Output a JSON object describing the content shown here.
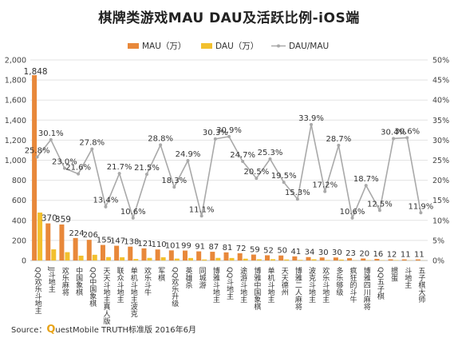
{
  "title": "棋牌类游戏MAU DAU及活跃比例-iOS端",
  "source": {
    "prefix": "Source：",
    "brand_q": "Q",
    "brand_rest": "uestMobile TRUTH标准版 2016年6月"
  },
  "colors": {
    "mau": "#e8883a",
    "dau": "#f2c02e",
    "ratio": "#a9a9a9"
  },
  "chart_data": {
    "type": "bar",
    "categories": [
      "QQ欢乐斗地主",
      "JJ斗地主",
      "欢乐麻将",
      "中国象棋",
      "QQ中国象棋",
      "天天斗地主真人版",
      "联众斗地主",
      "单机斗地主波克",
      "欢乐斗牛",
      "军棋",
      "QQ欢乐升级",
      "英雄杀",
      "同城游",
      "博雅斗地主",
      "QQ斗地主",
      "途游斗地主",
      "博雅中国象棋",
      "单机斗地主",
      "天天德州",
      "博雅二人麻将",
      "波克斗地主",
      "欢乐斗地主",
      "多乐够级",
      "疯狂的斗牛",
      "博雅四川麻将",
      "QQ五子棋",
      "掼蛋",
      "斗地主",
      "五子棋大师"
    ],
    "series": [
      {
        "name": "MAU（万）",
        "type": "bar",
        "axis": "left",
        "values": [
          1848,
          370,
          359,
          224,
          206,
          155,
          147,
          138,
          121,
          110,
          101,
          99,
          91,
          87,
          81,
          72,
          59,
          52,
          50,
          41,
          34,
          30,
          30,
          23,
          20,
          16,
          12,
          11,
          11
        ],
        "labels": [
          "1,848",
          "370",
          "359",
          "224",
          "206",
          "155",
          "147",
          "138",
          "121",
          "110",
          "101",
          "99",
          "91",
          "87",
          "81",
          "72",
          "59",
          "52",
          "50",
          "41",
          "34",
          "30",
          "30",
          "23",
          "20",
          "16",
          "12",
          "11",
          "11"
        ]
      },
      {
        "name": "DAU（万）",
        "type": "bar",
        "axis": "left",
        "values": [
          478,
          111,
          83,
          48,
          57,
          34,
          32,
          15,
          26,
          32,
          19,
          25,
          10,
          26,
          25,
          18,
          12,
          13,
          10,
          6,
          12,
          5,
          9,
          2,
          4,
          3,
          4,
          2,
          1
        ]
      },
      {
        "name": "DAU/MAU",
        "type": "line",
        "axis": "right",
        "values": [
          25.8,
          30.1,
          23.0,
          21.6,
          27.8,
          13.4,
          21.7,
          10.6,
          21.5,
          28.8,
          18.3,
          24.9,
          11.1,
          30.3,
          30.9,
          24.7,
          20.5,
          25.3,
          19.5,
          15.3,
          33.9,
          17.2,
          28.7,
          10.6,
          18.7,
          12.5,
          30.4,
          30.6,
          11.9
        ],
        "labels": [
          "25.8%",
          "30.1%",
          "23.0%",
          "21.6%",
          "27.8%",
          "13.4%",
          "21.7%",
          "10.6%",
          "21.5%",
          "28.8%",
          "18.3%",
          "24.9%",
          "11.1%",
          "30.3%",
          "30.9%",
          "24.7%",
          "20.5%",
          "25.3%",
          "19.5%",
          "15.3%",
          "33.9%",
          "17.2%",
          "28.7%",
          "10.6%",
          "18.7%",
          "12.5%",
          "30.4%",
          "30.6%",
          "11.9%"
        ]
      }
    ],
    "y_left": {
      "ylim": [
        0,
        2000
      ],
      "ticks": [
        "0",
        "200",
        "400",
        "600",
        "800",
        "1,000",
        "1,200",
        "1,400",
        "1,600",
        "1,800",
        "2,000"
      ]
    },
    "y_right": {
      "ylim": [
        0,
        50
      ],
      "ticks": [
        "0%",
        "5%",
        "10%",
        "15%",
        "20%",
        "25%",
        "30%",
        "35%",
        "40%",
        "45%",
        "50%"
      ]
    },
    "legend_position": "top",
    "grid": true
  }
}
